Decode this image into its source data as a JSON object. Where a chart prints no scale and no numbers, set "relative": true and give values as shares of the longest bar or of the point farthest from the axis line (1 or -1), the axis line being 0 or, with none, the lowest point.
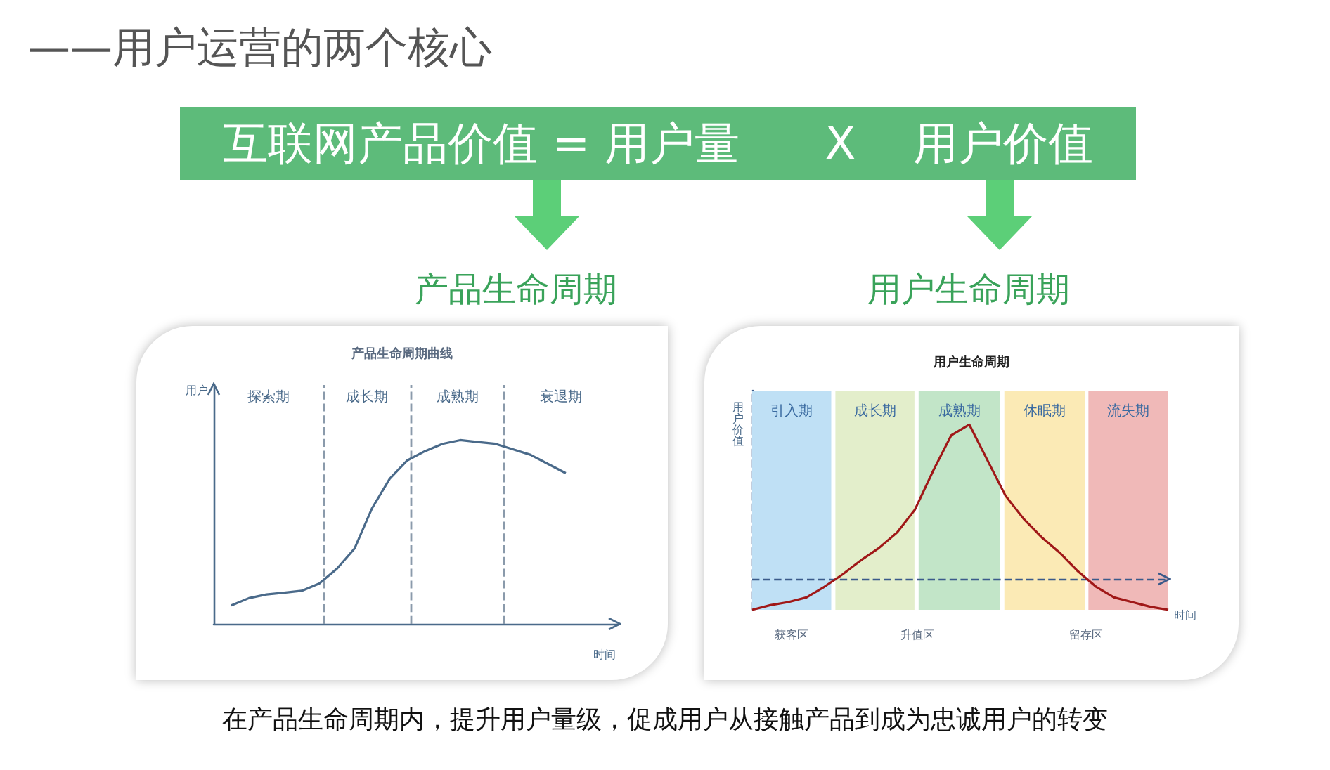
{
  "chart_data": [
    {
      "type": "line",
      "title": "产品生命周期曲线",
      "xlabel": "时间",
      "ylabel": "用户",
      "relative": true,
      "categories": [
        null,
        null,
        null,
        null,
        null,
        null,
        null,
        null,
        null,
        null,
        null,
        null,
        null,
        null,
        null,
        null,
        null,
        null,
        null,
        null,
        null,
        null,
        null,
        null
      ],
      "series": [
        {
          "color": "#4a6a8a",
          "values": [
            null,
            0.1,
            0.14,
            0.16,
            0.17,
            0.18,
            0.22,
            0.3,
            0.41,
            0.63,
            0.79,
            0.89,
            0.94,
            0.98,
            1,
            0.99,
            0.98,
            0.95,
            0.92,
            0.87,
            0.82,
            null,
            null,
            null
          ]
        }
      ],
      "marker": "none",
      "grid": false,
      "annotations": [
        "——用户运营的两个核心",
        "互联网产品价值 = 用户量      X    用户价值",
        "产品生命周期",
        "在产品生命周期内，提升用户量级，促成用户从接触产品到成为忠诚用户的转变",
        "探索期",
        "成长期",
        "成熟期",
        "衰退期"
      ]
    },
    {
      "type": "line",
      "title": "用户生命周期",
      "xlabel": "时间",
      "ylabel": "用户价值",
      "relative": true,
      "categories": [
        null,
        null,
        null,
        null,
        null,
        null,
        null,
        null,
        null,
        null,
        null,
        null,
        null,
        null,
        null,
        null,
        null,
        null,
        null,
        null,
        null,
        null,
        null,
        null
      ],
      "series": [
        {
          "color": "#a01818",
          "values": [
            -0.2,
            -0.17,
            -0.15,
            -0.12,
            -0.05,
            0.03,
            0.12,
            0.2,
            0.3,
            0.45,
            0.7,
            0.93,
            1,
            0.77,
            0.54,
            0.39,
            0.27,
            0.17,
            0.05,
            -0.05,
            -0.12,
            -0.15,
            -0.18,
            -0.2
          ]
        }
      ],
      "ref_lines": [
        {
          "axis": "y",
          "value": 0,
          "line_style": "dashed",
          "color": "#3a5a8a"
        }
      ],
      "marker": "none",
      "grid": false,
      "annotations": [
        "用户生命周期",
        "获客区",
        "升值区",
        "留存区",
        "引入期",
        "成长期",
        "成熟期",
        "休眠期",
        "流失期"
      ]
    }
  ]
}
